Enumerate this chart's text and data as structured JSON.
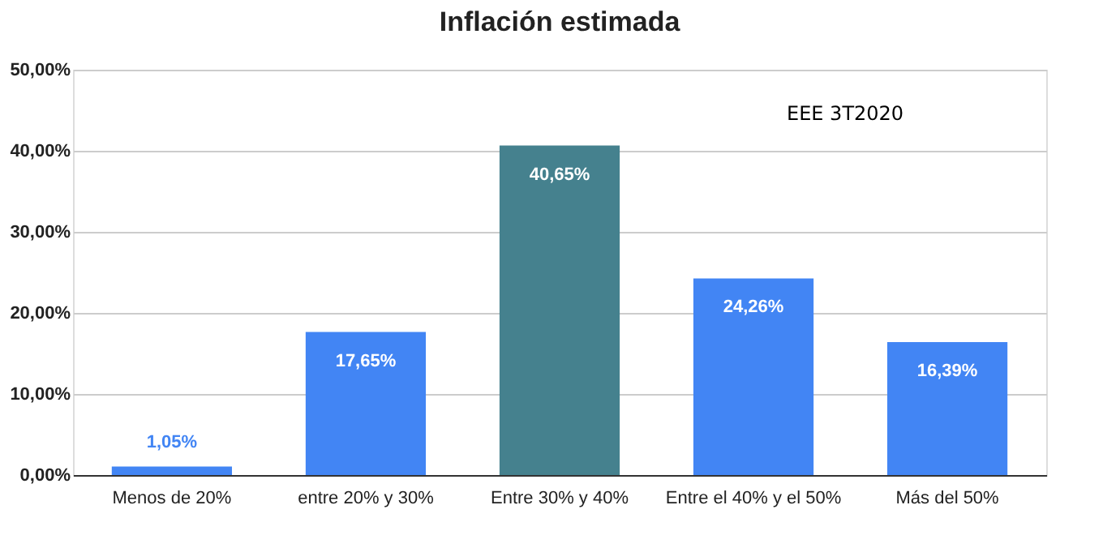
{
  "chart_data": {
    "type": "bar",
    "title": "Inflación estimada",
    "categories": [
      "Menos de 20%",
      "entre 20% y 30%",
      "Entre 30% y 40%",
      "Entre el 40% y el 50%",
      "Más del 50%"
    ],
    "values": [
      1.05,
      17.65,
      40.65,
      24.26,
      16.39
    ],
    "colors": [
      "#4285f4",
      "#4285f4",
      "#45818e",
      "#4285f4",
      "#4285f4"
    ],
    "value_labels": [
      "1,05%",
      "17,65%",
      "40,65%",
      "24,26%",
      "16,39%"
    ],
    "ylim": [
      0,
      50
    ],
    "yticks": [
      {
        "value": 0,
        "label": "0,00%"
      },
      {
        "value": 10,
        "label": "10,00%"
      },
      {
        "value": 20,
        "label": "20,00%"
      },
      {
        "value": 30,
        "label": "30,00%"
      },
      {
        "value": 40,
        "label": "40,00%"
      },
      {
        "value": 50,
        "label": "50,00%"
      }
    ],
    "grid": "y",
    "annotations": [
      "EEE 3T2020"
    ]
  }
}
